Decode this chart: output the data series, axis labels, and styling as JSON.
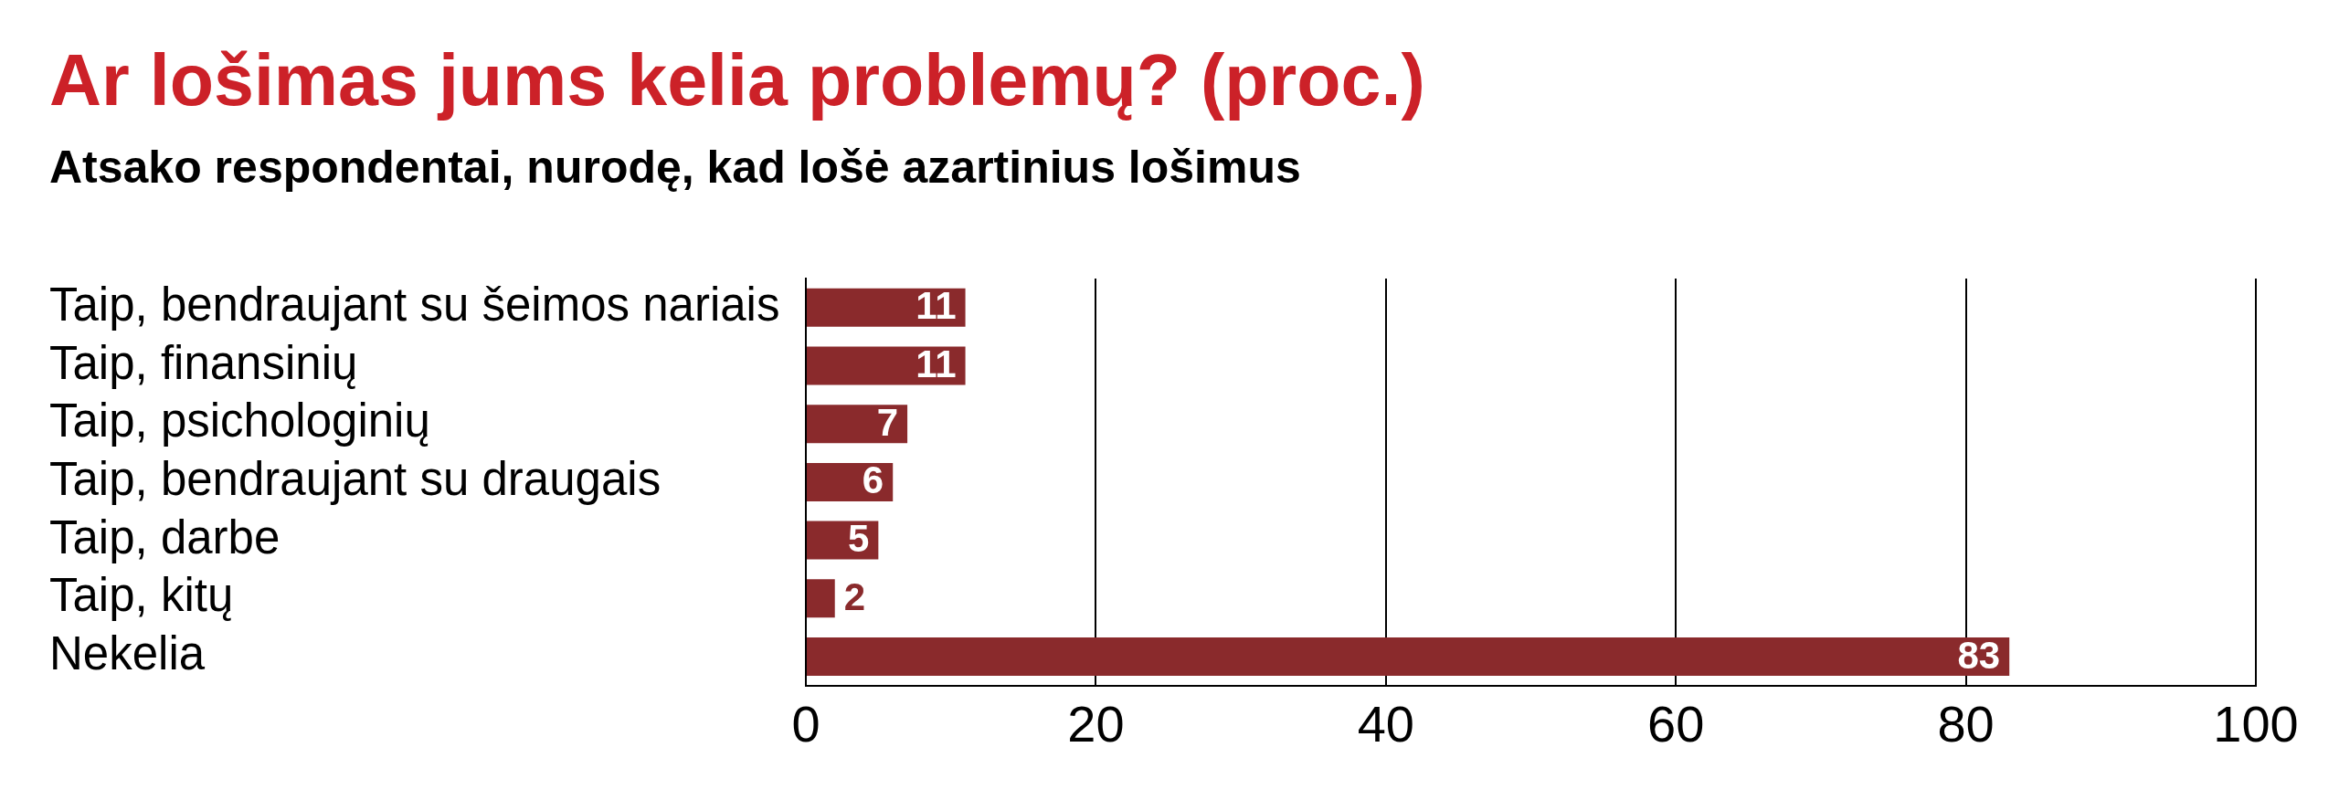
{
  "chart_data": {
    "type": "bar",
    "orientation": "horizontal",
    "title": "Ar lošimas jums kelia problemų? (proc.)",
    "subtitle": "Atsako respondentai, nurodę, kad lošė azartinius lošimus",
    "categories": [
      "Taip, bendraujant su šeimos nariais",
      "Taip, finansinių",
      "Taip, psichologinių",
      "Taip, bendraujant su draugais",
      "Taip, darbe",
      "Taip, kitų",
      "Nekelia"
    ],
    "values": [
      11,
      11,
      7,
      6,
      5,
      2,
      83
    ],
    "color": "#8a2a2c",
    "xlim": [
      0,
      100
    ],
    "xticks": [
      0,
      20,
      40,
      60,
      80,
      100
    ],
    "grid": "x",
    "data_labels": true
  }
}
